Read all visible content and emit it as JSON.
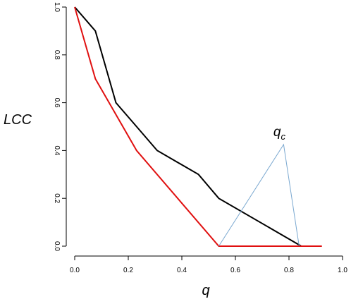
{
  "chart_data": {
    "type": "line",
    "xlabel": "q",
    "ylabel": "LCC",
    "xlim": [
      0,
      1
    ],
    "ylim": [
      0,
      1
    ],
    "x_ticks": [
      "0.0",
      "0.2",
      "0.4",
      "0.6",
      "0.8",
      "1.0"
    ],
    "y_ticks": [
      "0.0",
      "0.2",
      "0.4",
      "0.6",
      "0.8",
      "1.0"
    ],
    "grid": false,
    "series": [
      {
        "color": "#000000",
        "x": [
          0.0,
          0.077,
          0.154,
          0.231,
          0.308,
          0.462,
          0.538,
          0.846
        ],
        "y": [
          1.0,
          0.9,
          0.6,
          0.5,
          0.4,
          0.3,
          0.2,
          0.0
        ]
      },
      {
        "color": "#e01010",
        "x": [
          0.0,
          0.077,
          0.231,
          0.538,
          0.923
        ],
        "y": [
          1.0,
          0.7,
          0.4,
          0.0,
          0.0
        ]
      },
      {
        "color": "#7aa8d0",
        "x": [
          0.538,
          0.78,
          0.838
        ],
        "y": [
          0.0,
          0.425,
          0.0
        ]
      }
    ],
    "annotations": [
      {
        "text": "q",
        "subscript": "c",
        "x": 0.78,
        "y": 0.425
      }
    ]
  }
}
